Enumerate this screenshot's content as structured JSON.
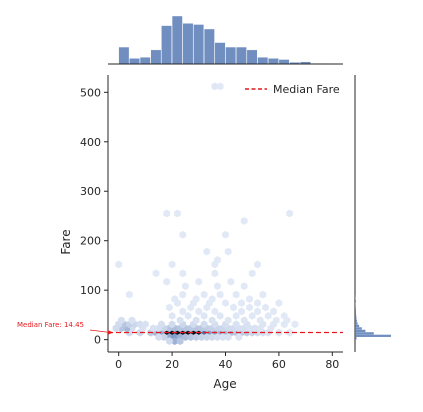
{
  "chart_data": {
    "type": "hexbin-joint",
    "xlabel": "Age",
    "ylabel": "Fare",
    "xlim": [
      -4,
      84
    ],
    "ylim": [
      -25,
      535
    ],
    "x_ticks": [
      0,
      20,
      40,
      60,
      80
    ],
    "y_ticks": [
      0,
      100,
      200,
      300,
      400,
      500
    ],
    "grid": false,
    "legend": {
      "position": "top-right",
      "entries": [
        {
          "label": "Median Fare",
          "style": "red dashed line"
        }
      ]
    },
    "median_fare": 14.45,
    "annotation": {
      "text": "Median Fare: 14.45",
      "points_to": {
        "x": -2,
        "y": 14.45
      }
    },
    "hex_color": "#4c72b0",
    "median_color": "#e41a1c",
    "hexbin": [
      {
        "x": 20,
        "y": 14,
        "d": 1.0
      },
      {
        "x": 22,
        "y": 14,
        "d": 1.0
      },
      {
        "x": 24,
        "y": 14,
        "d": 1.0
      },
      {
        "x": 26,
        "y": 14,
        "d": 1.0
      },
      {
        "x": 28,
        "y": 14,
        "d": 1.0
      },
      {
        "x": 30,
        "y": 14,
        "d": 1.0
      },
      {
        "x": 18,
        "y": 14,
        "d": 0.95
      },
      {
        "x": 32,
        "y": 14,
        "d": 0.9
      },
      {
        "x": 16,
        "y": 14,
        "d": 0.55
      },
      {
        "x": 34,
        "y": 14,
        "d": 0.6
      },
      {
        "x": 36,
        "y": 14,
        "d": 0.5
      },
      {
        "x": 38,
        "y": 14,
        "d": 0.45
      },
      {
        "x": 40,
        "y": 14,
        "d": 0.4
      },
      {
        "x": 42,
        "y": 14,
        "d": 0.35
      },
      {
        "x": 44,
        "y": 14,
        "d": 0.3
      },
      {
        "x": 46,
        "y": 14,
        "d": 0.28
      },
      {
        "x": 48,
        "y": 14,
        "d": 0.25
      },
      {
        "x": 50,
        "y": 14,
        "d": 0.2
      },
      {
        "x": 52,
        "y": 14,
        "d": 0.15
      },
      {
        "x": 54,
        "y": 14,
        "d": 0.12
      },
      {
        "x": 56,
        "y": 14,
        "d": 0.1
      },
      {
        "x": 60,
        "y": 14,
        "d": 0.08
      },
      {
        "x": 64,
        "y": 14,
        "d": 0.06
      },
      {
        "x": 12,
        "y": 14,
        "d": 0.25
      },
      {
        "x": 14,
        "y": 14,
        "d": 0.4
      },
      {
        "x": 8,
        "y": 14,
        "d": 0.18
      },
      {
        "x": 4,
        "y": 14,
        "d": 0.15
      },
      {
        "x": 19,
        "y": 5,
        "d": 0.5
      },
      {
        "x": 21,
        "y": 5,
        "d": 0.6
      },
      {
        "x": 23,
        "y": 5,
        "d": 0.45
      },
      {
        "x": 25,
        "y": 5,
        "d": 0.35
      },
      {
        "x": 27,
        "y": 5,
        "d": 0.3
      },
      {
        "x": 29,
        "y": 5,
        "d": 0.25
      },
      {
        "x": 31,
        "y": 5,
        "d": 0.2
      },
      {
        "x": 33,
        "y": 5,
        "d": 0.18
      },
      {
        "x": 35,
        "y": 5,
        "d": 0.15
      },
      {
        "x": 37,
        "y": 5,
        "d": 0.12
      },
      {
        "x": 39,
        "y": 5,
        "d": 0.1
      },
      {
        "x": 41,
        "y": 5,
        "d": 0.1
      },
      {
        "x": 45,
        "y": 5,
        "d": 0.08
      },
      {
        "x": 17,
        "y": 5,
        "d": 0.2
      },
      {
        "x": 15,
        "y": 5,
        "d": 0.12
      },
      {
        "x": 21,
        "y": -3,
        "d": 0.45
      },
      {
        "x": 23,
        "y": -3,
        "d": 0.3
      },
      {
        "x": 19,
        "y": -3,
        "d": 0.15
      },
      {
        "x": 19,
        "y": 23,
        "d": 0.3
      },
      {
        "x": 21,
        "y": 23,
        "d": 0.35
      },
      {
        "x": 23,
        "y": 23,
        "d": 0.3
      },
      {
        "x": 25,
        "y": 23,
        "d": 0.3
      },
      {
        "x": 27,
        "y": 23,
        "d": 0.28
      },
      {
        "x": 29,
        "y": 23,
        "d": 0.3
      },
      {
        "x": 31,
        "y": 23,
        "d": 0.28
      },
      {
        "x": 33,
        "y": 23,
        "d": 0.25
      },
      {
        "x": 35,
        "y": 23,
        "d": 0.22
      },
      {
        "x": 37,
        "y": 23,
        "d": 0.2
      },
      {
        "x": 39,
        "y": 23,
        "d": 0.18
      },
      {
        "x": 41,
        "y": 23,
        "d": 0.15
      },
      {
        "x": 43,
        "y": 23,
        "d": 0.14
      },
      {
        "x": 45,
        "y": 23,
        "d": 0.12
      },
      {
        "x": 47,
        "y": 23,
        "d": 0.12
      },
      {
        "x": 49,
        "y": 23,
        "d": 0.1
      },
      {
        "x": 51,
        "y": 23,
        "d": 0.1
      },
      {
        "x": 53,
        "y": 23,
        "d": 0.08
      },
      {
        "x": 57,
        "y": 23,
        "d": 0.07
      },
      {
        "x": 17,
        "y": 23,
        "d": 0.2
      },
      {
        "x": 15,
        "y": 23,
        "d": 0.12
      },
      {
        "x": 13,
        "y": 23,
        "d": 0.1
      },
      {
        "x": 9,
        "y": 23,
        "d": 0.1
      },
      {
        "x": 5,
        "y": 23,
        "d": 0.12
      },
      {
        "x": 3,
        "y": 23,
        "d": 0.4
      },
      {
        "x": 1,
        "y": 23,
        "d": 0.3
      },
      {
        "x": -1,
        "y": 23,
        "d": 0.15
      },
      {
        "x": 2,
        "y": 31,
        "d": 0.3
      },
      {
        "x": 4,
        "y": 31,
        "d": 0.22
      },
      {
        "x": 6,
        "y": 31,
        "d": 0.18
      },
      {
        "x": 0,
        "y": 31,
        "d": 0.15
      },
      {
        "x": 8,
        "y": 31,
        "d": 0.12
      },
      {
        "x": 10,
        "y": 31,
        "d": 0.1
      },
      {
        "x": 16,
        "y": 31,
        "d": 0.12
      },
      {
        "x": 20,
        "y": 31,
        "d": 0.15
      },
      {
        "x": 24,
        "y": 31,
        "d": 0.18
      },
      {
        "x": 28,
        "y": 31,
        "d": 0.15
      },
      {
        "x": 32,
        "y": 31,
        "d": 0.15
      },
      {
        "x": 36,
        "y": 31,
        "d": 0.12
      },
      {
        "x": 40,
        "y": 31,
        "d": 0.12
      },
      {
        "x": 44,
        "y": 31,
        "d": 0.1
      },
      {
        "x": 48,
        "y": 31,
        "d": 0.1
      },
      {
        "x": 54,
        "y": 31,
        "d": 0.08
      },
      {
        "x": 58,
        "y": 31,
        "d": 0.07
      },
      {
        "x": 62,
        "y": 31,
        "d": 0.06
      },
      {
        "x": 66,
        "y": 31,
        "d": 0.05
      },
      {
        "x": 1,
        "y": 39,
        "d": 0.12
      },
      {
        "x": 5,
        "y": 39,
        "d": 0.1
      },
      {
        "x": 23,
        "y": 39,
        "d": 0.1
      },
      {
        "x": 29,
        "y": 39,
        "d": 0.1
      },
      {
        "x": 35,
        "y": 39,
        "d": 0.1
      },
      {
        "x": 41,
        "y": 39,
        "d": 0.08
      },
      {
        "x": 47,
        "y": 39,
        "d": 0.08
      },
      {
        "x": 53,
        "y": 39,
        "d": 0.07
      },
      {
        "x": 59,
        "y": 39,
        "d": 0.06
      },
      {
        "x": 63,
        "y": 39,
        "d": 0.05
      },
      {
        "x": 20,
        "y": 48,
        "d": 0.07
      },
      {
        "x": 26,
        "y": 48,
        "d": 0.07
      },
      {
        "x": 32,
        "y": 48,
        "d": 0.07
      },
      {
        "x": 38,
        "y": 48,
        "d": 0.07
      },
      {
        "x": 44,
        "y": 48,
        "d": 0.06
      },
      {
        "x": 50,
        "y": 48,
        "d": 0.06
      },
      {
        "x": 56,
        "y": 48,
        "d": 0.05
      },
      {
        "x": 62,
        "y": 48,
        "d": 0.05
      },
      {
        "x": 24,
        "y": 57,
        "d": 0.06
      },
      {
        "x": 30,
        "y": 57,
        "d": 0.06
      },
      {
        "x": 36,
        "y": 57,
        "d": 0.05
      },
      {
        "x": 46,
        "y": 57,
        "d": 0.05
      },
      {
        "x": 52,
        "y": 57,
        "d": 0.05
      },
      {
        "x": 58,
        "y": 57,
        "d": 0.05
      },
      {
        "x": 19,
        "y": 65,
        "d": 0.05
      },
      {
        "x": 27,
        "y": 65,
        "d": 0.05
      },
      {
        "x": 33,
        "y": 65,
        "d": 0.05
      },
      {
        "x": 43,
        "y": 65,
        "d": 0.05
      },
      {
        "x": 49,
        "y": 65,
        "d": 0.05
      },
      {
        "x": 55,
        "y": 65,
        "d": 0.05
      },
      {
        "x": 22,
        "y": 74,
        "d": 0.06
      },
      {
        "x": 28,
        "y": 74,
        "d": 0.06
      },
      {
        "x": 34,
        "y": 74,
        "d": 0.05
      },
      {
        "x": 40,
        "y": 74,
        "d": 0.05
      },
      {
        "x": 46,
        "y": 74,
        "d": 0.05
      },
      {
        "x": 52,
        "y": 74,
        "d": 0.05
      },
      {
        "x": 60,
        "y": 74,
        "d": 0.05
      },
      {
        "x": 21,
        "y": 82,
        "d": 0.05
      },
      {
        "x": 29,
        "y": 82,
        "d": 0.05
      },
      {
        "x": 35,
        "y": 82,
        "d": 0.05
      },
      {
        "x": 49,
        "y": 82,
        "d": 0.05
      },
      {
        "x": 4,
        "y": 91,
        "d": 0.05
      },
      {
        "x": 24,
        "y": 91,
        "d": 0.05
      },
      {
        "x": 32,
        "y": 91,
        "d": 0.05
      },
      {
        "x": 38,
        "y": 91,
        "d": 0.05
      },
      {
        "x": 44,
        "y": 91,
        "d": 0.05
      },
      {
        "x": 54,
        "y": 91,
        "d": 0.05
      },
      {
        "x": 25,
        "y": 108,
        "d": 0.05
      },
      {
        "x": 37,
        "y": 108,
        "d": 0.05
      },
      {
        "x": 47,
        "y": 108,
        "d": 0.05
      },
      {
        "x": 18,
        "y": 117,
        "d": 0.05
      },
      {
        "x": 30,
        "y": 117,
        "d": 0.05
      },
      {
        "x": 42,
        "y": 117,
        "d": 0.05
      },
      {
        "x": 14,
        "y": 134,
        "d": 0.05
      },
      {
        "x": 24,
        "y": 134,
        "d": 0.05
      },
      {
        "x": 36,
        "y": 134,
        "d": 0.05
      },
      {
        "x": 50,
        "y": 134,
        "d": 0.05
      },
      {
        "x": 0,
        "y": 152,
        "d": 0.05
      },
      {
        "x": 20,
        "y": 152,
        "d": 0.05
      },
      {
        "x": 36,
        "y": 152,
        "d": 0.05
      },
      {
        "x": 52,
        "y": 152,
        "d": 0.05
      },
      {
        "x": 37,
        "y": 161,
        "d": 0.05
      },
      {
        "x": 33,
        "y": 178,
        "d": 0.05
      },
      {
        "x": 41,
        "y": 178,
        "d": 0.05
      },
      {
        "x": 24,
        "y": 212,
        "d": 0.05
      },
      {
        "x": 40,
        "y": 212,
        "d": 0.05
      },
      {
        "x": 47,
        "y": 240,
        "d": 0.05
      },
      {
        "x": 18,
        "y": 255,
        "d": 0.05
      },
      {
        "x": 22,
        "y": 255,
        "d": 0.05
      },
      {
        "x": 64,
        "y": 255,
        "d": 0.05
      },
      {
        "x": 36,
        "y": 512,
        "d": 0.07
      },
      {
        "x": 38,
        "y": 512,
        "d": 0.05
      }
    ],
    "age_histogram": {
      "bin_edges": [
        0,
        4,
        8,
        12,
        16,
        20,
        24,
        28,
        32,
        36,
        40,
        44,
        48,
        52,
        56,
        60,
        64,
        68,
        72,
        76,
        80
      ],
      "counts": [
        30,
        10,
        12,
        25,
        68,
        85,
        72,
        70,
        62,
        38,
        30,
        30,
        25,
        12,
        10,
        8,
        3,
        4,
        1,
        1
      ]
    },
    "fare_histogram": {
      "bin_edges": [
        0,
        5,
        10,
        15,
        20,
        25,
        30,
        35,
        40,
        45,
        50,
        55,
        60,
        65,
        70,
        75,
        80,
        85,
        90
      ],
      "counts": [
        15,
        345,
        180,
        100,
        65,
        40,
        25,
        18,
        15,
        12,
        10,
        9,
        8,
        6,
        5,
        8,
        5,
        3
      ]
    }
  }
}
